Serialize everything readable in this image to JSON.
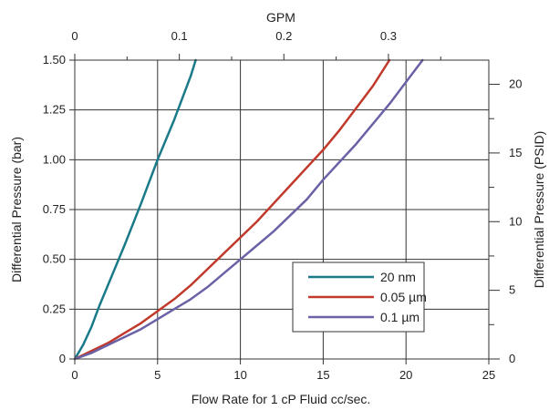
{
  "chart_data": {
    "type": "line",
    "title": "",
    "xlabel": "Flow Rate for 1 cP Fluid cc/sec.",
    "ylabel": "Differential Pressure (bar)",
    "x2label": "GPM",
    "y2label": "Differential Pressure (PSID)",
    "xlim": [
      0,
      25
    ],
    "ylim": [
      0,
      1.5
    ],
    "x2lim": [
      0,
      0.396
    ],
    "y2lim": [
      0,
      21.76
    ],
    "x_ticks": [
      "0",
      "5",
      "10",
      "15",
      "20",
      "25"
    ],
    "y_ticks": [
      "0",
      "0.25",
      "0.50",
      "0.75",
      "1.00",
      "1.25",
      "1.50"
    ],
    "x2_ticks": [
      "0",
      "0.1",
      "0.2",
      "0.3"
    ],
    "y2_ticks": [
      "0",
      "5",
      "10",
      "15",
      "20"
    ],
    "grid": true,
    "legend_position": "lower-right",
    "series": [
      {
        "name": "20 nm",
        "color": "#1a7a8a",
        "x": [
          0,
          0.5,
          1,
          1.5,
          2,
          3,
          4,
          5,
          6,
          7,
          7.3
        ],
        "y": [
          0,
          0.07,
          0.16,
          0.27,
          0.37,
          0.57,
          0.78,
          1.0,
          1.2,
          1.42,
          1.5
        ]
      },
      {
        "name": "0.05 µm",
        "color": "#c0392b",
        "x": [
          0,
          1,
          2,
          3,
          4,
          5,
          6,
          7,
          8,
          9,
          10,
          11,
          12,
          13,
          14,
          15,
          16,
          17,
          18,
          19
        ],
        "y": [
          0,
          0.04,
          0.08,
          0.13,
          0.18,
          0.24,
          0.3,
          0.37,
          0.45,
          0.53,
          0.61,
          0.69,
          0.78,
          0.87,
          0.96,
          1.05,
          1.15,
          1.26,
          1.37,
          1.5
        ]
      },
      {
        "name": "0.1 µm",
        "color": "#6a62a6",
        "x": [
          0,
          1,
          2,
          3,
          4,
          5,
          6,
          7,
          8,
          9,
          10,
          11,
          12,
          13,
          14,
          15,
          16,
          17,
          18,
          19,
          20,
          21
        ],
        "y": [
          0,
          0.03,
          0.07,
          0.11,
          0.15,
          0.2,
          0.25,
          0.3,
          0.36,
          0.43,
          0.5,
          0.57,
          0.64,
          0.72,
          0.8,
          0.9,
          0.99,
          1.08,
          1.18,
          1.28,
          1.39,
          1.5
        ]
      }
    ]
  }
}
